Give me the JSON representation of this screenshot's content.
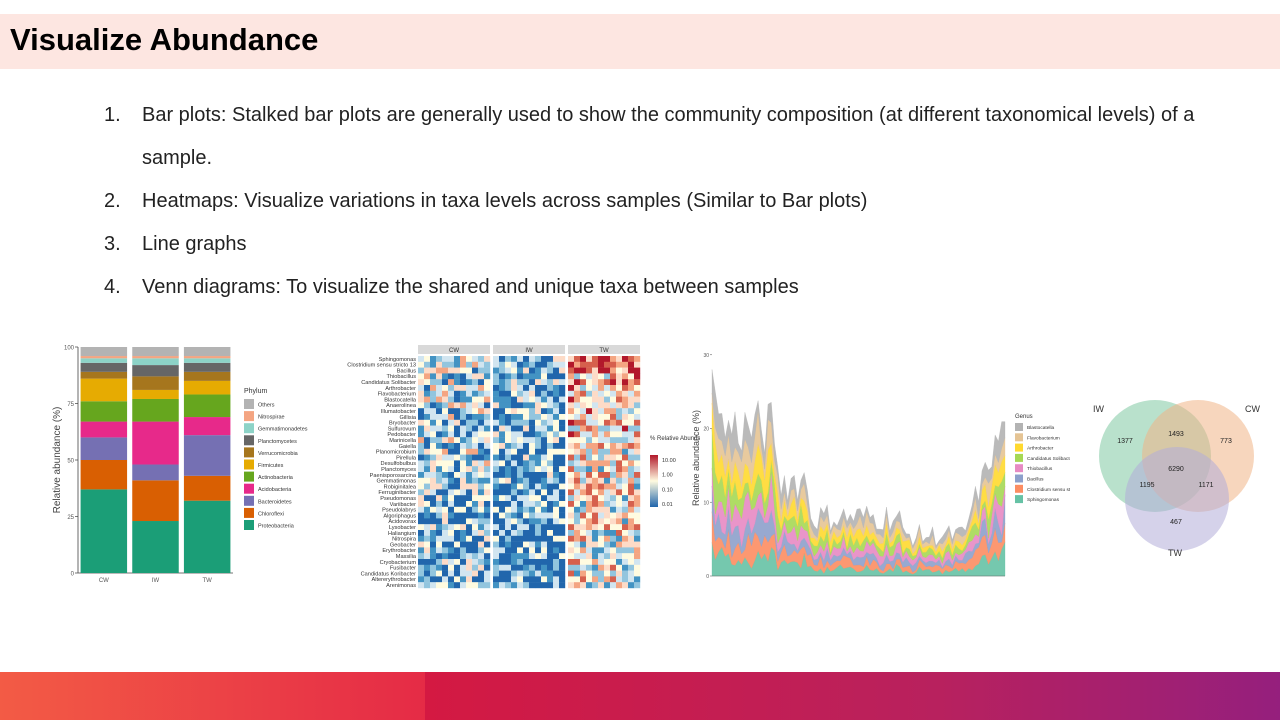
{
  "title": "Visualize Abundance",
  "bullets": [
    {
      "num": "1.",
      "text": "Bar plots: Stalked bar plots are generally used to show the community composition (at different taxonomical levels) of a sample."
    },
    {
      "num": "2.",
      "text": "Heatmaps:  Visualize variations in taxa levels across samples (Similar to Bar plots)"
    },
    {
      "num": "3.",
      "text": "Line graphs"
    },
    {
      "num": "4.",
      "text": "Venn diagrams: To visualize the shared and unique taxa between samples"
    }
  ],
  "chart_data": [
    {
      "type": "bar",
      "stacked": true,
      "ylabel": "Relative abundance (%)",
      "categories": [
        "CW",
        "IW",
        "TW"
      ],
      "ylim": [
        0,
        100
      ],
      "yticks": [
        "0",
        "25",
        "50",
        "75",
        "100"
      ],
      "legend_title": "Phylum",
      "legend_position": "right",
      "series": [
        {
          "name": "Proteobacteria",
          "color": "#1b9e77",
          "values": [
            37,
            23,
            32
          ]
        },
        {
          "name": "Chloroflexi",
          "color": "#d95f02",
          "values": [
            13,
            18,
            11
          ]
        },
        {
          "name": "Bacteroidetes",
          "color": "#7570b3",
          "values": [
            10,
            7,
            18
          ]
        },
        {
          "name": "Acidobacteria",
          "color": "#e7298a",
          "values": [
            7,
            19,
            8
          ]
        },
        {
          "name": "Actinobacteria",
          "color": "#66a61e",
          "values": [
            9,
            10,
            10
          ]
        },
        {
          "name": "Firmicutes",
          "color": "#e6ab02",
          "values": [
            10,
            4,
            6
          ]
        },
        {
          "name": "Verrucomicrobia",
          "color": "#a6761d",
          "values": [
            3,
            6,
            4
          ]
        },
        {
          "name": "Planctomycetes",
          "color": "#666666",
          "values": [
            4,
            5,
            4
          ]
        },
        {
          "name": "Gemmatimonadetes",
          "color": "#8dd3c7",
          "values": [
            2,
            3,
            2
          ]
        },
        {
          "name": "Nitrospirae",
          "color": "#f4a582",
          "values": [
            1,
            1,
            1
          ]
        },
        {
          "name": "Others",
          "color": "#b3b3b3",
          "values": [
            4,
            4,
            4
          ]
        }
      ]
    },
    {
      "type": "heatmap",
      "columns": [
        "CW",
        "IW",
        "TW"
      ],
      "rows": [
        "Sphingomonas",
        "Clostridium sensu stricto 13",
        "Bacillus",
        "Thiobacillus",
        "Candidatus Solibacter",
        "Arthrobacter",
        "Flavobacterium",
        "Blastocatella",
        "Anaerolinea",
        "Illumatobacter",
        "Gillisia",
        "Bryobacter",
        "Sulfurovum",
        "Pedobacter",
        "Marinicella",
        "Gaiella",
        "Planomicrobium",
        "Pirellula",
        "Desulfobulbus",
        "Planctomyces",
        "Paenisporosarcina",
        "Gemmatimonas",
        "Robiginitalea",
        "Ferruginibacter",
        "Pseudomonas",
        "Variibacter",
        "Pseudolabrys",
        "Algoriphagus",
        "Acidovorax",
        "Lysobacter",
        "Haliangium",
        "Nitrospira",
        "Geobacter",
        "Erythrobacter",
        "Massilia",
        "Cryobacterium",
        "Fusibacter",
        "Candidatus Koribacter",
        "Altererythrobacter",
        "Arenimonas"
      ],
      "legend_title": "% Relative Abundance",
      "legend_ticks": [
        "10.00",
        "1.00",
        "0.10",
        "0.01"
      ],
      "colors": {
        "high": "#b2182b",
        "mid": "#fffbe0",
        "low": "#2166ac"
      }
    },
    {
      "type": "area",
      "stacked": true,
      "ylabel": "Relative abundance (%)",
      "yticks": [
        "0",
        "10",
        "20",
        "30"
      ],
      "ylim": [
        0,
        32
      ],
      "legend_title": "Genus",
      "legend_position": "right",
      "series": [
        {
          "name": "Blastocatella",
          "color": "#b3b3b3"
        },
        {
          "name": "Flavobacterium",
          "color": "#e5c494"
        },
        {
          "name": "Arthrobacter",
          "color": "#ffd92f"
        },
        {
          "name": "Candidatus Solibacter",
          "color": "#a6d854"
        },
        {
          "name": "Thiobacillus",
          "color": "#e78ac3"
        },
        {
          "name": "Bacillus",
          "color": "#8da0cb"
        },
        {
          "name": "Clostridium sensu stricto 1",
          "color": "#fc8d62"
        },
        {
          "name": "Sphingomonas",
          "color": "#66c2a5"
        }
      ]
    },
    {
      "type": "venn",
      "sets": [
        {
          "name": "IW",
          "color": "#7fc8a3",
          "only": "1377"
        },
        {
          "name": "CW",
          "color": "#f0b486",
          "only": "773"
        },
        {
          "name": "TW",
          "color": "#b3add8",
          "only": "467"
        }
      ],
      "iw_cw": "1493",
      "iw_tw": "1195",
      "cw_tw": "1171",
      "all": "6290"
    }
  ]
}
